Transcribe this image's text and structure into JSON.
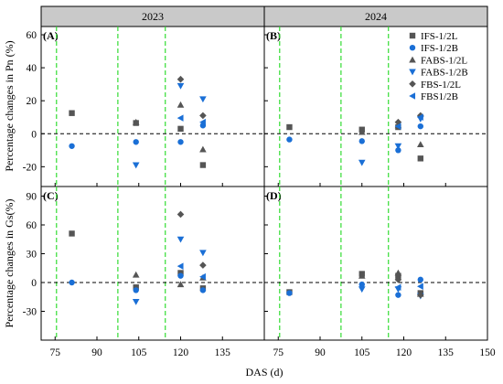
{
  "chart_data": {
    "type": "scatter",
    "xlabel": "DAS (d)",
    "x_ticks": [
      75,
      90,
      105,
      120,
      135,
      150
    ],
    "columns": [
      {
        "header": "2023",
        "xlim": [
          70,
          150
        ],
        "x_ticks": [
          75,
          90,
          105,
          120,
          135
        ]
      },
      {
        "header": "2024",
        "xlim": [
          70,
          150
        ],
        "x_ticks": [
          75,
          90,
          105,
          120,
          135,
          150
        ]
      }
    ],
    "rows": [
      {
        "ylabel": "Percentage changes in Pn (%)",
        "ylim": [
          -32,
          65
        ],
        "y_ticks": [
          -20,
          0,
          20,
          40,
          60
        ]
      },
      {
        "ylabel": "Percentage changes in Gs(%)",
        "ylim": [
          -60,
          100
        ],
        "y_ticks": [
          -30,
          0,
          30,
          60,
          90
        ]
      }
    ],
    "vlines": [
      {
        "x": 75.5,
        "style": "dashed",
        "color": "#33dd33"
      },
      {
        "x": 97.5,
        "style": "dashed",
        "color": "#33dd33"
      },
      {
        "x": 114.5,
        "style": "dashed",
        "color": "#33dd33"
      }
    ],
    "hline": {
      "y": 0,
      "style": "dashed",
      "color": "#000000"
    },
    "legend": {
      "placement": "top-right of panel B",
      "entries": [
        {
          "label": "IFS-1/2L",
          "marker": "square",
          "color": "#555555"
        },
        {
          "label": "IFS-1/2B",
          "marker": "circle",
          "color": "#1a6fd6"
        },
        {
          "label": "FABS-1/2L",
          "marker": "triangle-up",
          "color": "#555555"
        },
        {
          "label": "FABS-1/2B",
          "marker": "triangle-down",
          "color": "#1a6fd6"
        },
        {
          "label": "FBS-1/2L",
          "marker": "diamond",
          "color": "#555555"
        },
        {
          "label": "FBS1/2B",
          "marker": "triangle-left",
          "color": "#1a6fd6"
        }
      ]
    },
    "panels": [
      {
        "label": "(A)",
        "row": 0,
        "col": 0,
        "series": [
          {
            "name": "IFS-1/2L",
            "points": [
              [
                81,
                12.5
              ],
              [
                104,
                6.5
              ],
              [
                120,
                3
              ],
              [
                128,
                -19
              ]
            ]
          },
          {
            "name": "IFS-1/2B",
            "points": [
              [
                81,
                -7.5
              ],
              [
                104,
                -5
              ],
              [
                120,
                -5
              ],
              [
                128,
                5
              ]
            ]
          },
          {
            "name": "FABS-1/2L",
            "points": [
              [
                104,
                7
              ],
              [
                120,
                17.5
              ],
              [
                128,
                -9.5
              ]
            ]
          },
          {
            "name": "FABS-1/2B",
            "points": [
              [
                104,
                -19
              ],
              [
                120,
                29
              ],
              [
                128,
                21
              ]
            ]
          },
          {
            "name": "FBS-1/2L",
            "points": [
              [
                120,
                33
              ],
              [
                128,
                11
              ]
            ]
          },
          {
            "name": "FBS1/2B",
            "points": [
              [
                120,
                9.5
              ],
              [
                128,
                7
              ]
            ]
          }
        ]
      },
      {
        "label": "(B)",
        "row": 0,
        "col": 1,
        "series": [
          {
            "name": "IFS-1/2L",
            "points": [
              [
                79,
                4
              ],
              [
                105,
                2.5
              ],
              [
                118,
                4
              ],
              [
                126,
                -15
              ]
            ]
          },
          {
            "name": "IFS-1/2B",
            "points": [
              [
                79,
                -3.5
              ],
              [
                105,
                -4.5
              ],
              [
                118,
                -10
              ],
              [
                126,
                4.5
              ]
            ]
          },
          {
            "name": "FABS-1/2L",
            "points": [
              [
                105,
                1
              ],
              [
                118,
                5
              ],
              [
                126,
                -6.5
              ]
            ]
          },
          {
            "name": "FABS-1/2B",
            "points": [
              [
                105,
                -17.5
              ],
              [
                118,
                -7.5
              ],
              [
                126,
                9
              ]
            ]
          },
          {
            "name": "FBS-1/2L",
            "points": [
              [
                118,
                7
              ],
              [
                126,
                11
              ]
            ]
          },
          {
            "name": "FBS1/2B",
            "points": [
              [
                118,
                4.5
              ],
              [
                126,
                10
              ]
            ]
          }
        ]
      },
      {
        "label": "(C)",
        "row": 1,
        "col": 0,
        "series": [
          {
            "name": "IFS-1/2L",
            "points": [
              [
                81,
                51
              ],
              [
                104,
                -5
              ],
              [
                120,
                10
              ],
              [
                128,
                -6
              ]
            ]
          },
          {
            "name": "IFS-1/2B",
            "points": [
              [
                81,
                0
              ],
              [
                104,
                -8
              ],
              [
                120,
                7
              ],
              [
                128,
                -8
              ]
            ]
          },
          {
            "name": "FABS-1/2L",
            "points": [
              [
                104,
                8
              ],
              [
                120,
                -2
              ],
              [
                128,
                5
              ]
            ]
          },
          {
            "name": "FABS-1/2B",
            "points": [
              [
                104,
                -20
              ],
              [
                120,
                45
              ],
              [
                128,
                31
              ]
            ]
          },
          {
            "name": "FBS-1/2L",
            "points": [
              [
                120,
                71
              ],
              [
                128,
                18
              ]
            ]
          },
          {
            "name": "FBS1/2B",
            "points": [
              [
                120,
                17
              ],
              [
                128,
                6
              ]
            ]
          }
        ]
      },
      {
        "label": "(D)",
        "row": 1,
        "col": 1,
        "series": [
          {
            "name": "IFS-1/2L",
            "points": [
              [
                79,
                -10
              ],
              [
                105,
                9
              ],
              [
                118,
                7
              ],
              [
                126,
                -11
              ]
            ]
          },
          {
            "name": "IFS-1/2B",
            "points": [
              [
                79,
                -11
              ],
              [
                105,
                -2
              ],
              [
                118,
                -13
              ],
              [
                126,
                3
              ]
            ]
          },
          {
            "name": "FABS-1/2L",
            "points": [
              [
                105,
                7
              ],
              [
                118,
                10
              ],
              [
                126,
                -12
              ]
            ]
          },
          {
            "name": "FABS-1/2B",
            "points": [
              [
                105,
                -7
              ],
              [
                118,
                -7
              ],
              [
                126,
                -14
              ]
            ]
          },
          {
            "name": "FBS-1/2L",
            "points": [
              [
                118,
                3
              ],
              [
                126,
                -13
              ]
            ]
          },
          {
            "name": "FBS1/2B",
            "points": [
              [
                118,
                -5
              ],
              [
                126,
                -4
              ]
            ]
          }
        ]
      }
    ]
  }
}
